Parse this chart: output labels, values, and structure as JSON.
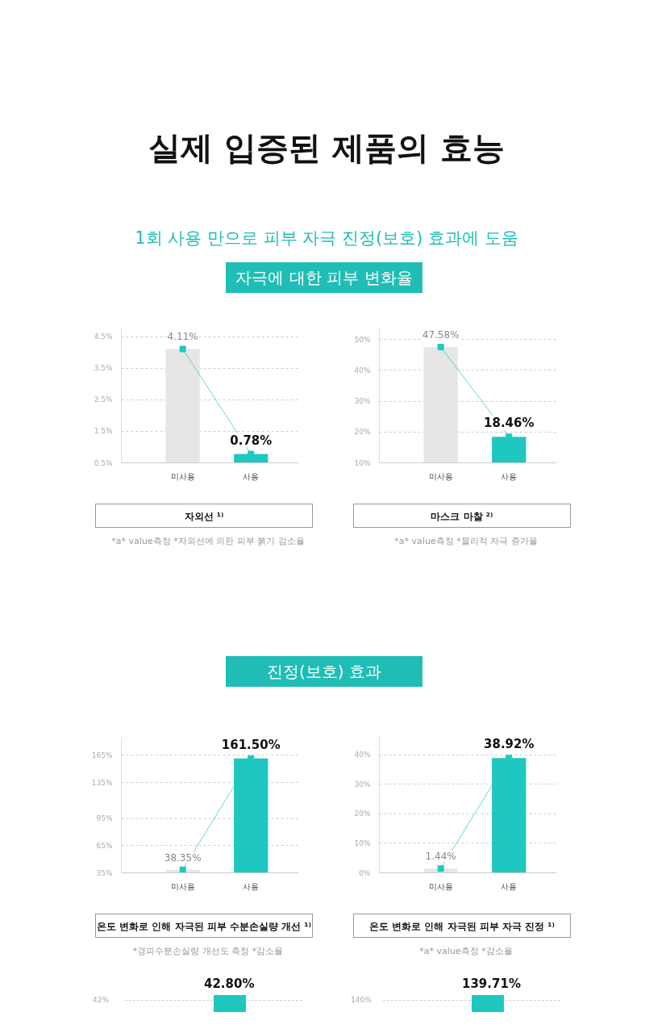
{
  "chart_data": [
    {
      "type": "bar",
      "title": "실제 입증된 제품의 효능",
      "subtitle": "1회 사용 만으로 피부 자극 진정(보호) 효과에 도움",
      "xlabel": "자외선 ¹⁾",
      "categories": [
        "미사용",
        "사용"
      ],
      "series": [
        {
          "colors": [
            "#e6e6e6",
            "#1ec8c0"
          ],
          "values": [
            4.11,
            0.78
          ],
          "value_labels": [
            "4.11%",
            "0.78%"
          ]
        },
        {
          "type": "line",
          "color": "#1ec8c0",
          "values": [
            4.11,
            0.78
          ]
        }
      ],
      "ylim": [
        0.5,
        4.8
      ],
      "yticks": [
        {
          "value": 0.5,
          "label": "0.5%"
        },
        {
          "value": 1.5,
          "label": "1.5%"
        },
        {
          "value": 2.5,
          "label": "2.5%"
        },
        {
          "value": 3.5,
          "label": "3.5%"
        },
        {
          "value": 4.5,
          "label": "4.5%"
        }
      ],
      "grid": "y",
      "marker": "square",
      "annotations": [
        "자극에 대한 피부 변화율",
        "*a* value측정 *자외선에 의한 피부 붉기 감소율"
      ]
    },
    {
      "type": "bar",
      "xlabel": "마스크 마찰 ²⁾",
      "categories": [
        "미사용",
        "사용"
      ],
      "series": [
        {
          "colors": [
            "#e6e6e6",
            "#1ec8c0"
          ],
          "values": [
            47.58,
            18.46
          ],
          "value_labels": [
            "47.58%",
            "18.46%"
          ]
        },
        {
          "type": "line",
          "color": "#1ec8c0",
          "values": [
            47.58,
            18.46
          ]
        }
      ],
      "ylim": [
        10,
        54
      ],
      "yticks": [
        {
          "value": 10,
          "label": "10%"
        },
        {
          "value": 20,
          "label": "20%"
        },
        {
          "value": 30,
          "label": "30%"
        },
        {
          "value": 40,
          "label": "40%"
        },
        {
          "value": 50,
          "label": "50%"
        }
      ],
      "grid": "y",
      "marker": "square",
      "annotations": [
        "*a* value측정 *물리적 자극 증가율"
      ]
    },
    {
      "type": "bar",
      "xlabel": "온도 변화로 인해 자극된 피부 수분손실량 개선 ¹⁾",
      "categories": [
        "미사용",
        "사용"
      ],
      "series": [
        {
          "colors": [
            "#e6e6e6",
            "#1ec8c0"
          ],
          "values": [
            38.35,
            161.5
          ],
          "value_labels": [
            "38.35%",
            "161.50%"
          ]
        },
        {
          "type": "line",
          "color": "#1ec8c0",
          "values": [
            38.35,
            161.5
          ]
        }
      ],
      "ylim": [
        35,
        185
      ],
      "yticks": [
        {
          "value": 35,
          "label": "35%"
        },
        {
          "value": 65,
          "label": "65%"
        },
        {
          "value": 95,
          "label": "95%"
        },
        {
          "value": 135,
          "label": "135%"
        },
        {
          "value": 165,
          "label": "165%"
        }
      ],
      "grid": "y",
      "marker": "square",
      "annotations": [
        "진정(보호) 효과",
        "*경피수분손실량 개선도 측정 *감소율"
      ]
    },
    {
      "type": "bar",
      "xlabel": "온도 변화로 인해 자극된 피부 자극 진정 ¹⁾",
      "categories": [
        "미사용",
        "사용"
      ],
      "series": [
        {
          "colors": [
            "#e6e6e6",
            "#1ec8c0"
          ],
          "values": [
            1.44,
            38.92
          ],
          "value_labels": [
            "1.44%",
            "38.92%"
          ]
        },
        {
          "type": "line",
          "color": "#1ec8c0",
          "values": [
            1.44,
            38.92
          ]
        }
      ],
      "ylim": [
        0,
        46
      ],
      "yticks": [
        {
          "value": 0,
          "label": "0%"
        },
        {
          "value": 10,
          "label": "10%"
        },
        {
          "value": 20,
          "label": "20%"
        },
        {
          "value": 30,
          "label": "30%"
        },
        {
          "value": 40,
          "label": "40%"
        }
      ],
      "grid": "y",
      "marker": "square",
      "annotations": [
        "*a* value측정 *감소율"
      ]
    },
    {
      "type": "other",
      "annotations": [
        "42.80%",
        "42%"
      ]
    },
    {
      "type": "other",
      "annotations": [
        "139.71%",
        "140%"
      ]
    }
  ]
}
